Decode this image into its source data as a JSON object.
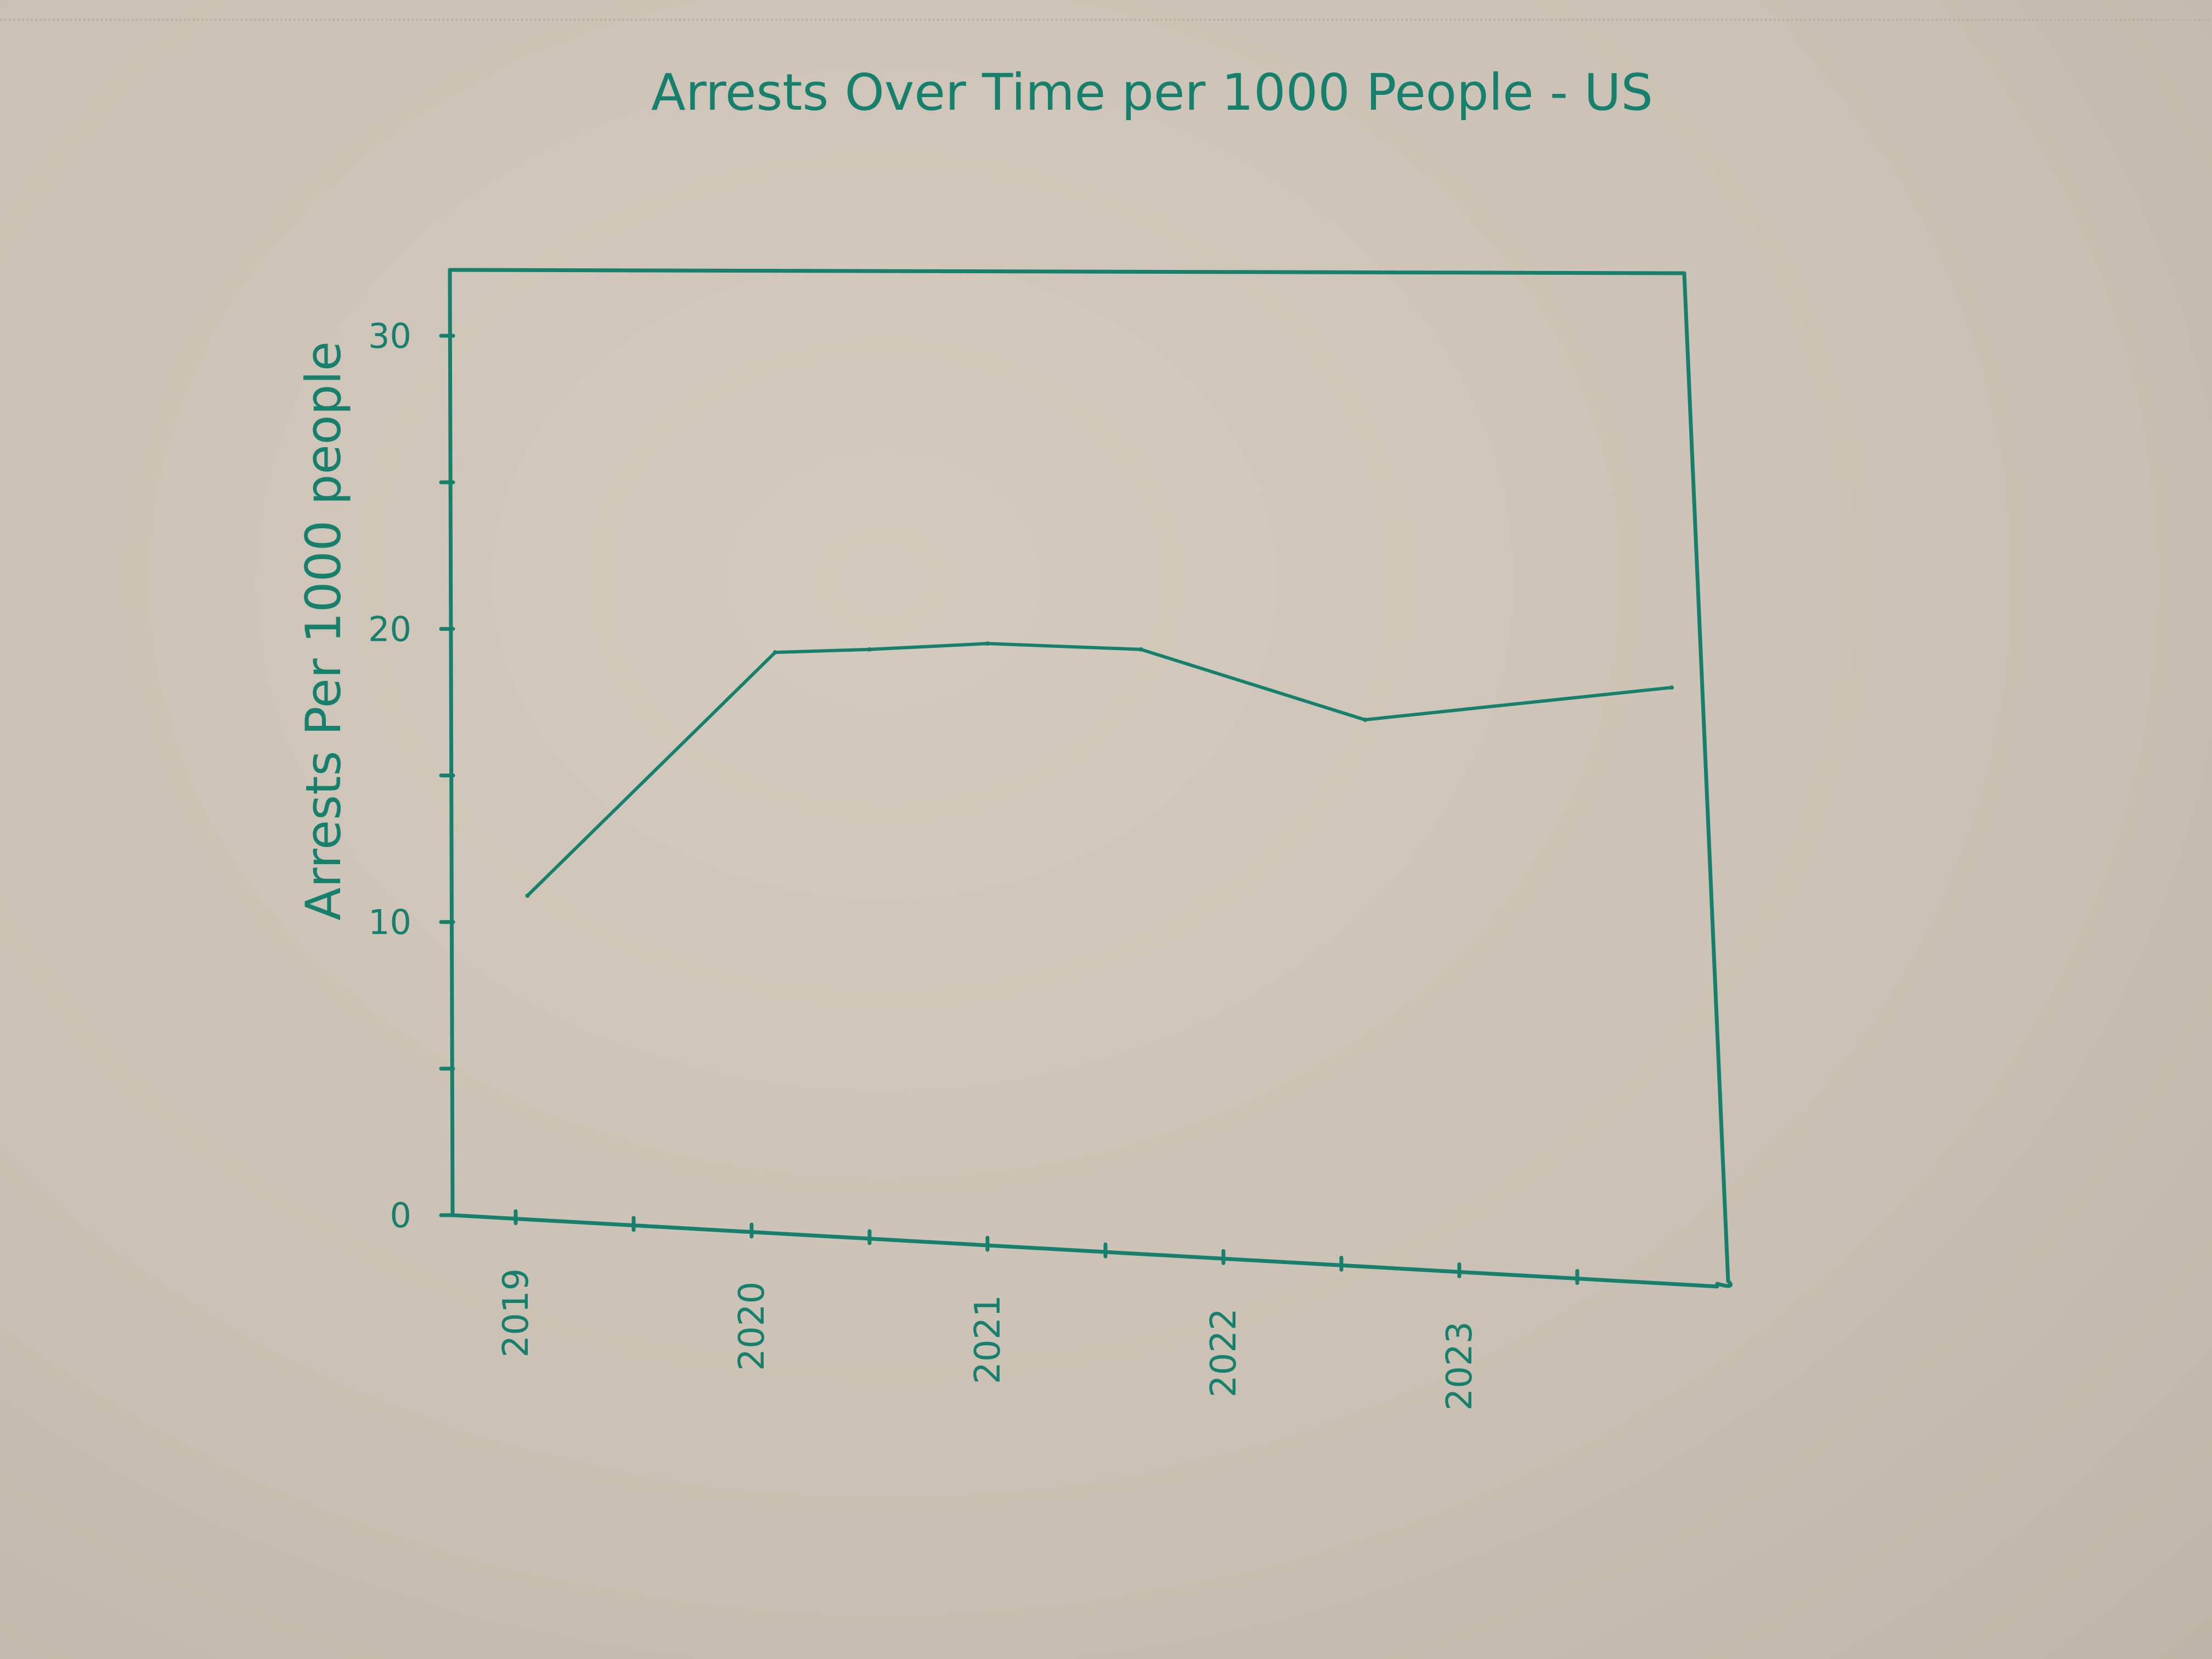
{
  "chart_data": {
    "type": "line",
    "title": "Arrests Over Time per 1000 People - US",
    "xlabel": "",
    "ylabel": "Arrests Per 1000 people",
    "x_ticks": [
      "2019",
      "2020",
      "2021",
      "2022",
      "2023"
    ],
    "y_ticks": [
      "0",
      "10",
      "20",
      "30"
    ],
    "xlim": [
      2019,
      2024
    ],
    "ylim": [
      0,
      32
    ],
    "grid": false,
    "legend": "none",
    "series": [
      {
        "x": [
          2019.05,
          2020.1,
          2020.5,
          2021.0,
          2021.65,
          2022.6,
          2023.9
        ],
        "values": [
          10.9,
          19.2,
          19.3,
          19.5,
          19.3,
          16.9,
          18.0
        ]
      }
    ]
  },
  "style": {
    "ink_color": "#17806c",
    "paper_color": "#cbc1b5"
  }
}
